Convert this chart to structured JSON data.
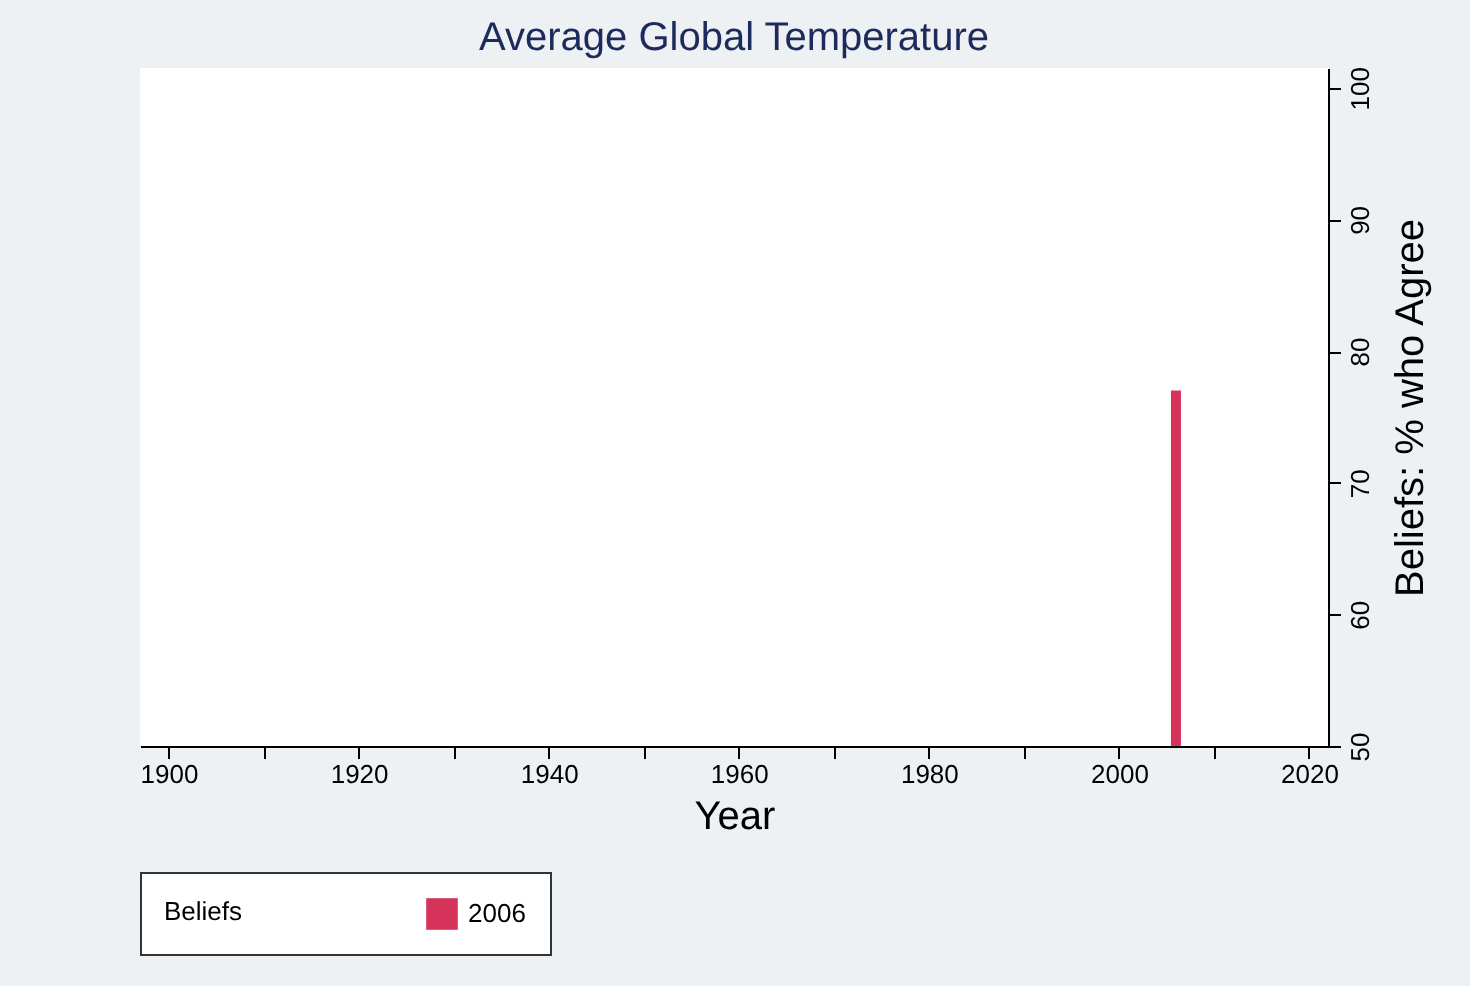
{
  "chart_data": {
    "type": "bar",
    "title": "Average Global Temperature",
    "xlabel": "Year",
    "y2label": "Beliefs: % who Agree",
    "legend_title": "Beliefs",
    "legend": "bottom",
    "x": [
      2006
    ],
    "series": [
      {
        "name": "2006",
        "color": "#d6335a",
        "values": [
          77
        ],
        "axis": "y2"
      }
    ],
    "xlim": [
      1897,
      2022
    ],
    "xticks": [
      1900,
      {
        "value": 1910,
        "label": null
      },
      1920,
      {
        "value": 1930,
        "label": null
      },
      1940,
      {
        "value": 1950,
        "label": null
      },
      1960,
      {
        "value": 1970,
        "label": null
      },
      1980,
      {
        "value": 1990,
        "label": null
      },
      2000,
      {
        "value": 2010,
        "label": null
      },
      2020
    ],
    "y2lim": [
      50,
      101.5
    ],
    "y2ticks": [
      50,
      60,
      70,
      80,
      90,
      100
    ],
    "grid": false
  }
}
